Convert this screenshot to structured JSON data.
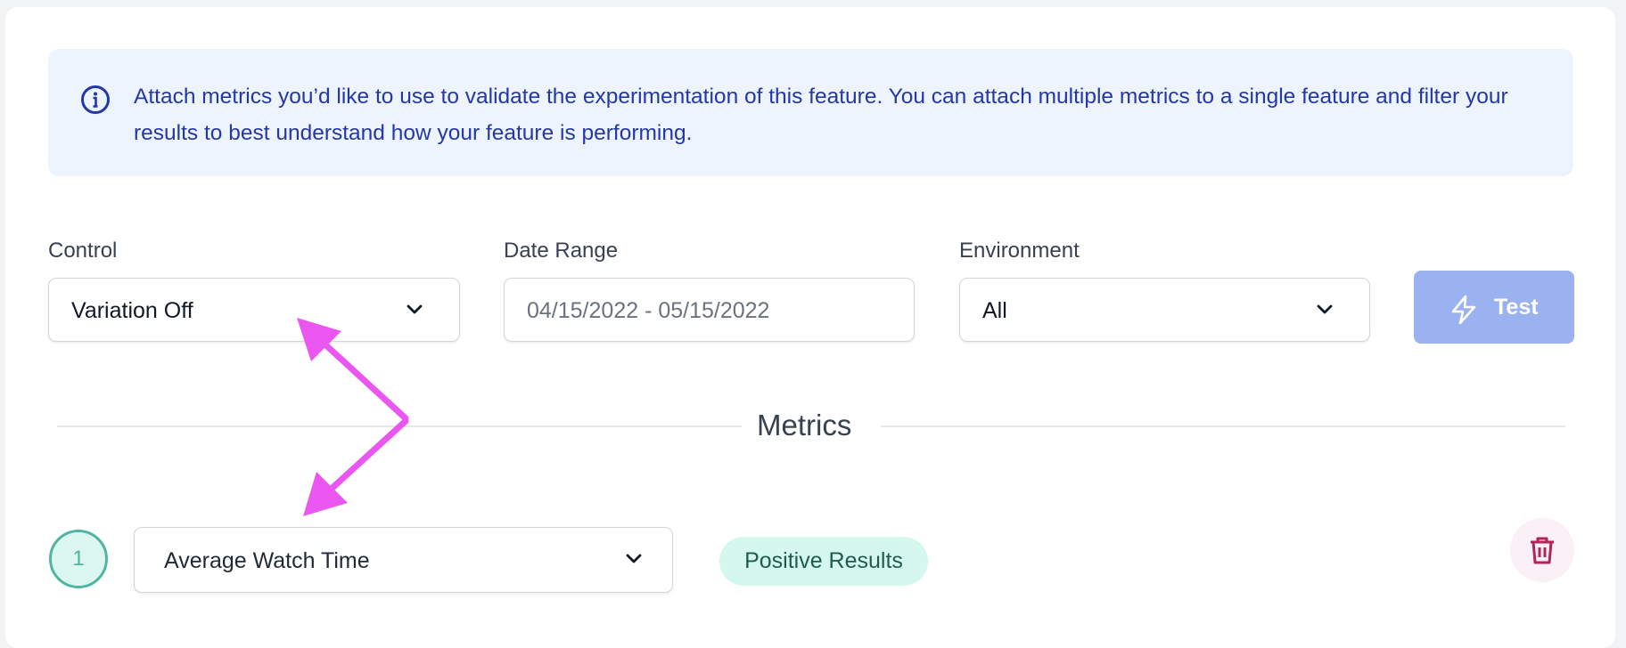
{
  "info": {
    "icon": "info-circle-icon",
    "text": "Attach metrics you’d like to use to validate the experimentation of this feature. You can attach multiple metrics to a single feature and filter your results to best understand how your feature is performing."
  },
  "filters": {
    "control": {
      "label": "Control",
      "value": "Variation Off"
    },
    "date_range": {
      "label": "Date Range",
      "placeholder": "04/15/2022 - 05/15/2022"
    },
    "environment": {
      "label": "Environment",
      "value": "All"
    },
    "test_button": {
      "label": "Test",
      "icon": "lightning-bolt-icon"
    }
  },
  "metrics": {
    "title": "Metrics",
    "rows": [
      {
        "number": "1",
        "metric": "Average Watch Time",
        "status": "Positive Results",
        "delete_icon": "trash-icon"
      }
    ]
  },
  "colors": {
    "accent": "#9bb2f0",
    "info_text": "#2437a8",
    "annotation_arrow": "#ea56f0",
    "positive_badge": "#d4f8ee",
    "delete": "#b0245a"
  }
}
